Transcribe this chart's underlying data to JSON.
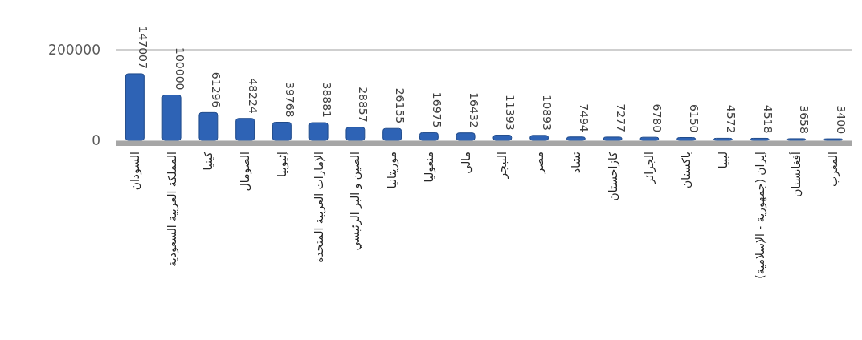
{
  "chart_data": {
    "type": "bar",
    "categories": [
      "السودان",
      "المملكة العربية السعودية",
      "كينيا",
      "الصومال",
      "إثيوبيا",
      "الإمارات العربية المتحدة",
      "الصين و البر الرئيسي",
      "موريتانيا",
      "منغوليا",
      "مالي",
      "النيجر",
      "مصر",
      "تشاد",
      "كازاخستان",
      "الجزائر",
      "باكستان",
      "ليبيا",
      "إيران (جمهورية - الإسلامية)",
      "أفغانستان",
      "المغرب"
    ],
    "values": [
      147007,
      100000,
      61296,
      48224,
      39768,
      38881,
      28857,
      26155,
      16975,
      16432,
      11393,
      10893,
      7494,
      7277,
      6780,
      6150,
      4572,
      4518,
      3658,
      3400
    ],
    "color": "#2e63b5",
    "ylim": [
      0,
      200000
    ],
    "yticks": [
      0,
      200000
    ],
    "grid": "y",
    "data_labels": true
  }
}
